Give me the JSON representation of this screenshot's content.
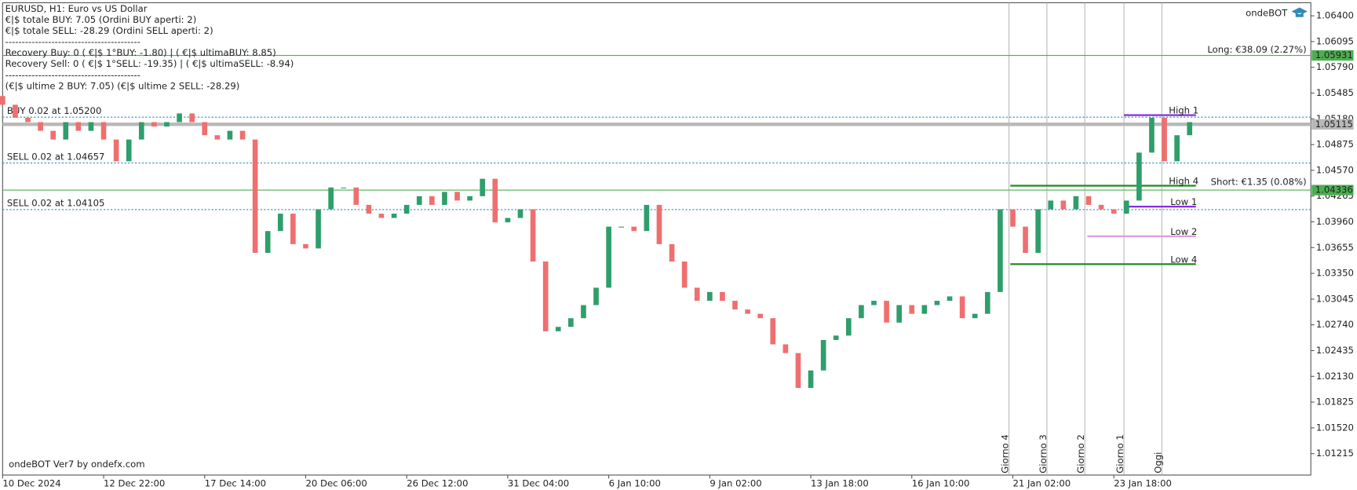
{
  "chart_data": {
    "type": "candlestick",
    "symbol_line": "EURUSD, H1:  Euro vs US Dollar",
    "info_lines": [
      "€|$ totale BUY: 7.05 (Ordini BUY aperti: 2)",
      "€|$ totale SELL: -28.29 (Ordini SELL aperti: 2)",
      "-----------------------------------------",
      "Recovery Buy: 0 ( €|$ 1°BUY: -1.80) | ( €|$ ultimaBUY: 8.85)",
      "Recovery Sell: 0 ( €|$ 1°SELL: -19.35) | ( €|$ ultimaSELL: -8.94)",
      "-----------------------------------------",
      "(€|$ ultime 2 BUY: 7.05)  (€|$ ultime 2 SELL: -28.29)"
    ],
    "brand": "ondeBOT",
    "watermark": "ondeBOT Ver7 by ondefx.com",
    "long_label": "Long: €38.09 (2.27%)",
    "short_label": "Short: €1.35 (0.08%)",
    "up_color": "#2e9e6b",
    "down_color": "#ef6f6f",
    "open": [
      1.0545,
      1.05347,
      1.05193,
      1.05141,
      1.05038,
      1.04935,
      1.05141,
      1.05038,
      1.05141,
      1.04935,
      1.04677,
      1.04935,
      1.05141,
      1.05089,
      1.05141,
      1.05244,
      1.05141,
      1.04986,
      1.04935,
      1.05038,
      1.04935,
      1.03593,
      1.03851,
      1.04057,
      1.03696,
      1.03645,
      1.04109,
      1.04367,
      1.04367,
      1.04161,
      1.04057,
      1.04006,
      1.04057,
      1.04161,
      1.04264,
      1.04161,
      1.04315,
      1.04212,
      1.04264,
      1.0447,
      1.03954,
      1.04006,
      1.04109,
      1.0349,
      1.02664,
      1.02716,
      1.02819,
      1.02974,
      1.0318,
      1.03903,
      1.03903,
      1.03851,
      1.04161,
      1.03696,
      1.0349,
      1.0318,
      1.03025,
      1.03129,
      1.03025,
      1.02922,
      1.02871,
      1.02819,
      1.02509,
      1.02406,
      1.01993,
      1.022,
      1.02561,
      1.02613,
      1.02819,
      1.02974,
      1.03025,
      1.02767,
      1.02974,
      1.02871,
      1.02974,
      1.03025,
      1.03077,
      1.02819,
      1.02871,
      1.03129,
      1.04109,
      1.03903,
      1.03593,
      1.04109,
      1.04212,
      1.04109,
      1.04264,
      1.04161,
      1.04109,
      1.04057,
      1.04212,
      1.0478,
      1.05193,
      1.04677,
      1.04986
    ],
    "close": [
      1.05347,
      1.05193,
      1.05141,
      1.05038,
      1.04935,
      1.05141,
      1.05038,
      1.05141,
      1.04935,
      1.04677,
      1.04935,
      1.05141,
      1.05089,
      1.05141,
      1.05244,
      1.05141,
      1.04986,
      1.04935,
      1.05038,
      1.04935,
      1.03593,
      1.03851,
      1.04057,
      1.03696,
      1.03645,
      1.04109,
      1.04367,
      1.04367,
      1.04161,
      1.04057,
      1.04006,
      1.04057,
      1.04161,
      1.04264,
      1.04161,
      1.04315,
      1.04212,
      1.04264,
      1.0447,
      1.03954,
      1.04006,
      1.04109,
      1.0349,
      1.02664,
      1.02716,
      1.02819,
      1.02974,
      1.0318,
      1.03903,
      1.03903,
      1.03851,
      1.04161,
      1.03696,
      1.0349,
      1.0318,
      1.03025,
      1.03129,
      1.03025,
      1.02922,
      1.02871,
      1.02819,
      1.02509,
      1.02406,
      1.01993,
      1.022,
      1.02561,
      1.02613,
      1.02819,
      1.02974,
      1.03025,
      1.02767,
      1.02974,
      1.02871,
      1.02974,
      1.03025,
      1.03077,
      1.02819,
      1.02871,
      1.03129,
      1.04109,
      1.03903,
      1.03593,
      1.04109,
      1.04212,
      1.04109,
      1.04264,
      1.04161,
      1.04109,
      1.04057,
      1.04212,
      1.0478,
      1.05193,
      1.04677,
      1.04986,
      1.05141
    ],
    "xlim": [
      0,
      103.6
    ],
    "xticks": [
      {
        "value": 0,
        "label": "10 Dec 2024"
      },
      {
        "value": 8,
        "label": "12 Dec 22:00"
      },
      {
        "value": 16,
        "label": "17 Dec 14:00"
      },
      {
        "value": 24,
        "label": "20 Dec 06:00"
      },
      {
        "value": 32,
        "label": "26 Dec 12:00"
      },
      {
        "value": 40,
        "label": "31 Dec 04:00"
      },
      {
        "value": 48,
        "label": "6 Jan 10:00"
      },
      {
        "value": 56,
        "label": "9 Jan 02:00"
      },
      {
        "value": 64,
        "label": "13 Jan 18:00"
      },
      {
        "value": 72,
        "label": "16 Jan 10:00"
      },
      {
        "value": 80,
        "label": "21 Jan 02:00"
      },
      {
        "value": 88,
        "label": "23 Jan 18:00"
      }
    ],
    "ylim": [
      1.00961,
      1.06555
    ],
    "yticks": [
      {
        "value": 1.064,
        "label": "1.06400"
      },
      {
        "value": 1.06095,
        "label": "1.06095"
      },
      {
        "value": 1.0579,
        "label": "1.05790"
      },
      {
        "value": 1.05485,
        "label": "1.05485"
      },
      {
        "value": 1.0518,
        "label": "1.05180"
      },
      {
        "value": 1.04875,
        "label": "1.04875"
      },
      {
        "value": 1.0457,
        "label": "1.04570"
      },
      {
        "value": 1.04265,
        "label": "1.04265"
      },
      {
        "value": 1.0396,
        "label": "1.03960"
      },
      {
        "value": 1.03655,
        "label": "1.03655"
      },
      {
        "value": 1.0335,
        "label": "1.03350"
      },
      {
        "value": 1.03045,
        "label": "1.03045"
      },
      {
        "value": 1.0274,
        "label": "1.02740"
      },
      {
        "value": 1.02435,
        "label": "1.02435"
      },
      {
        "value": 1.0213,
        "label": "1.02130"
      },
      {
        "value": 1.01825,
        "label": "1.01825"
      },
      {
        "value": 1.0152,
        "label": "1.01520"
      },
      {
        "value": 1.01215,
        "label": "1.01215"
      }
    ],
    "price_lines": [
      {
        "value": 1.05931,
        "color": "#4caf50",
        "style": "solid",
        "tag": true
      },
      {
        "value": 1.052,
        "color": "#2e8bb8",
        "style": "dotted",
        "text": "BUY 0.02 at 1.05200"
      },
      {
        "value": 1.05115,
        "color": "#b8b8b8",
        "style": "thick",
        "tag": true
      },
      {
        "value": 1.04657,
        "color": "#2e8bb8",
        "style": "dotted",
        "text": "SELL 0.02 at 1.04657"
      },
      {
        "value": 1.04336,
        "color": "#4caf50",
        "style": "solid",
        "tag": true
      },
      {
        "value": 1.04105,
        "color": "#2e8bb8",
        "style": "dotted",
        "text": "SELL 0.02 at 1.04105"
      }
    ],
    "levels": [
      {
        "name": "High 1",
        "value": 1.05224,
        "color": "#8a2be2",
        "start": 88.8
      },
      {
        "name": "High 4",
        "value": 1.04388,
        "color": "#1e8c1e",
        "start": 79.8
      },
      {
        "name": "Low 1",
        "value": 1.0414,
        "color": "#8a2be2",
        "start": 88.8
      },
      {
        "name": "Low 2",
        "value": 1.03789,
        "color": "#dda0dd",
        "start": 85.9
      },
      {
        "name": "Low 4",
        "value": 1.03459,
        "color": "#1e8c1e",
        "start": 79.8
      }
    ],
    "day_markers": [
      {
        "label": "Giorno 4",
        "x": 79.7
      },
      {
        "label": "Giorno 3",
        "x": 82.7
      },
      {
        "label": "Giorno 2",
        "x": 85.7
      },
      {
        "label": "Giorno 1",
        "x": 88.8
      },
      {
        "label": "Oggi",
        "x": 91.8
      }
    ]
  }
}
